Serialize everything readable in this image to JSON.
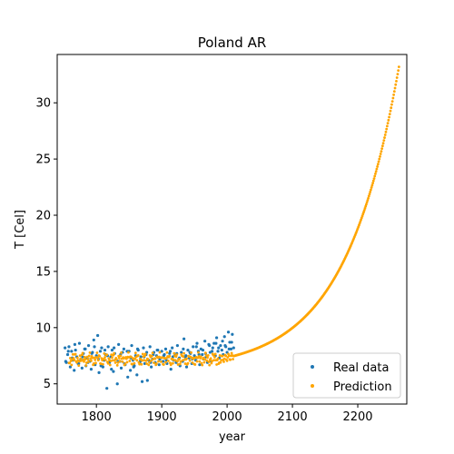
{
  "chart_data": {
    "type": "scatter",
    "title": "Poland AR",
    "xlabel": "year",
    "ylabel": "T [Cel]",
    "xlim": [
      1740,
      2275
    ],
    "ylim": [
      3.2,
      34.3
    ],
    "x_ticks": [
      1800,
      1900,
      2000,
      2100,
      2200
    ],
    "y_ticks": [
      5,
      10,
      15,
      20,
      25,
      30
    ],
    "grid": false,
    "legend_position": "lower-right",
    "series": [
      {
        "name": "Real data",
        "color": "#1f77b4",
        "x": [
          1752,
          1754,
          1756,
          1758,
          1760,
          1762,
          1764,
          1766,
          1768,
          1770,
          1772,
          1774,
          1776,
          1778,
          1780,
          1782,
          1784,
          1786,
          1788,
          1790,
          1792,
          1794,
          1796,
          1798,
          1800,
          1802,
          1804,
          1806,
          1808,
          1810,
          1812,
          1814,
          1816,
          1818,
          1820,
          1822,
          1824,
          1826,
          1828,
          1830,
          1832,
          1834,
          1836,
          1838,
          1840,
          1842,
          1844,
          1846,
          1848,
          1850,
          1852,
          1854,
          1856,
          1858,
          1860,
          1862,
          1864,
          1866,
          1868,
          1870,
          1872,
          1874,
          1876,
          1878,
          1880,
          1882,
          1884,
          1886,
          1888,
          1890,
          1892,
          1894,
          1896,
          1898,
          1900,
          1902,
          1904,
          1906,
          1908,
          1910,
          1912,
          1914,
          1916,
          1918,
          1920,
          1922,
          1924,
          1926,
          1928,
          1930,
          1932,
          1934,
          1936,
          1938,
          1940,
          1942,
          1944,
          1946,
          1948,
          1950,
          1952,
          1954,
          1956,
          1958,
          1960,
          1962,
          1964,
          1966,
          1968,
          1970,
          1972,
          1974,
          1976,
          1978,
          1980,
          1982,
          1984,
          1986,
          1988,
          1990,
          1992,
          1994,
          1996,
          1998,
          2000,
          2002,
          2004,
          2006,
          2008,
          2010,
          1753,
          1757,
          1763,
          1767,
          1773,
          1779,
          1783,
          1787,
          1793,
          1797,
          1803,
          1807,
          1813,
          1817,
          1823,
          1827,
          1833,
          1837,
          1843,
          1847,
          1853,
          1857,
          1863,
          1867,
          1873,
          1877,
          1883,
          1887,
          1893,
          1897,
          1903,
          1907,
          1913,
          1917,
          1923,
          1927,
          1933,
          1937,
          1943,
          1947,
          1953,
          1957,
          1963,
          1967,
          1973,
          1977,
          1983,
          1987,
          1993,
          1997,
          2003,
          2007
        ],
        "y": [
          8.2,
          6.9,
          7.6,
          8.3,
          6.5,
          7.9,
          7.1,
          6.2,
          8.0,
          7.4,
          6.8,
          8.6,
          7.2,
          6.4,
          7.7,
          8.1,
          6.6,
          7.3,
          8.4,
          7.0,
          6.3,
          7.8,
          8.9,
          6.7,
          7.5,
          9.3,
          6.0,
          7.9,
          8.2,
          6.5,
          7.1,
          7.6,
          4.6,
          8.3,
          6.9,
          7.4,
          8.0,
          6.1,
          7.7,
          7.2,
          5.0,
          8.5,
          7.0,
          6.4,
          7.8,
          8.1,
          6.7,
          7.3,
          5.6,
          7.9,
          6.2,
          8.4,
          7.1,
          6.6,
          7.5,
          5.8,
          8.0,
          6.9,
          7.4,
          5.2,
          8.2,
          6.8,
          7.6,
          5.3,
          7.1,
          8.3,
          6.5,
          7.2,
          7.8,
          6.9,
          7.5,
          8.0,
          6.7,
          7.3,
          7.9,
          7.0,
          7.6,
          8.1,
          6.8,
          7.4,
          7.7,
          6.3,
          8.2,
          7.1,
          7.5,
          6.9,
          8.4,
          7.2,
          6.6,
          7.8,
          7.0,
          9.0,
          7.4,
          6.5,
          8.0,
          7.3,
          7.7,
          6.8,
          8.3,
          7.5,
          7.1,
          8.6,
          7.9,
          6.7,
          8.1,
          7.6,
          7.2,
          8.8,
          7.4,
          6.9,
          8.5,
          7.8,
          7.0,
          8.2,
          8.6,
          7.5,
          9.1,
          7.9,
          7.3,
          8.4,
          8.0,
          7.6,
          9.2,
          8.3,
          7.8,
          9.6,
          8.7,
          8.1,
          9.4,
          8.2,
          7.0,
          7.9,
          7.3,
          8.5,
          6.8,
          7.4,
          8.1,
          6.9,
          7.7,
          8.3,
          7.2,
          6.6,
          8.0,
          7.5,
          6.3,
          8.2,
          7.0,
          7.6,
          6.8,
          7.9,
          7.3,
          6.5,
          8.1,
          7.0,
          7.4,
          7.8,
          6.9,
          7.6,
          8.0,
          7.2,
          7.5,
          7.1,
          7.9,
          7.4,
          7.7,
          7.3,
          8.1,
          7.5,
          7.8,
          7.2,
          8.3,
          7.6,
          8.0,
          7.7,
          8.4,
          7.9,
          8.6,
          8.2,
          8.8,
          8.4,
          8.1,
          8.7
        ]
      },
      {
        "name": "Prediction",
        "color": "#ffa500",
        "x_range": [
          1758,
          2263
        ],
        "x_step": 1,
        "model": "flat near 7.2 until ~1990, then rising exponentially to ~33.2 at 2263"
      }
    ]
  }
}
